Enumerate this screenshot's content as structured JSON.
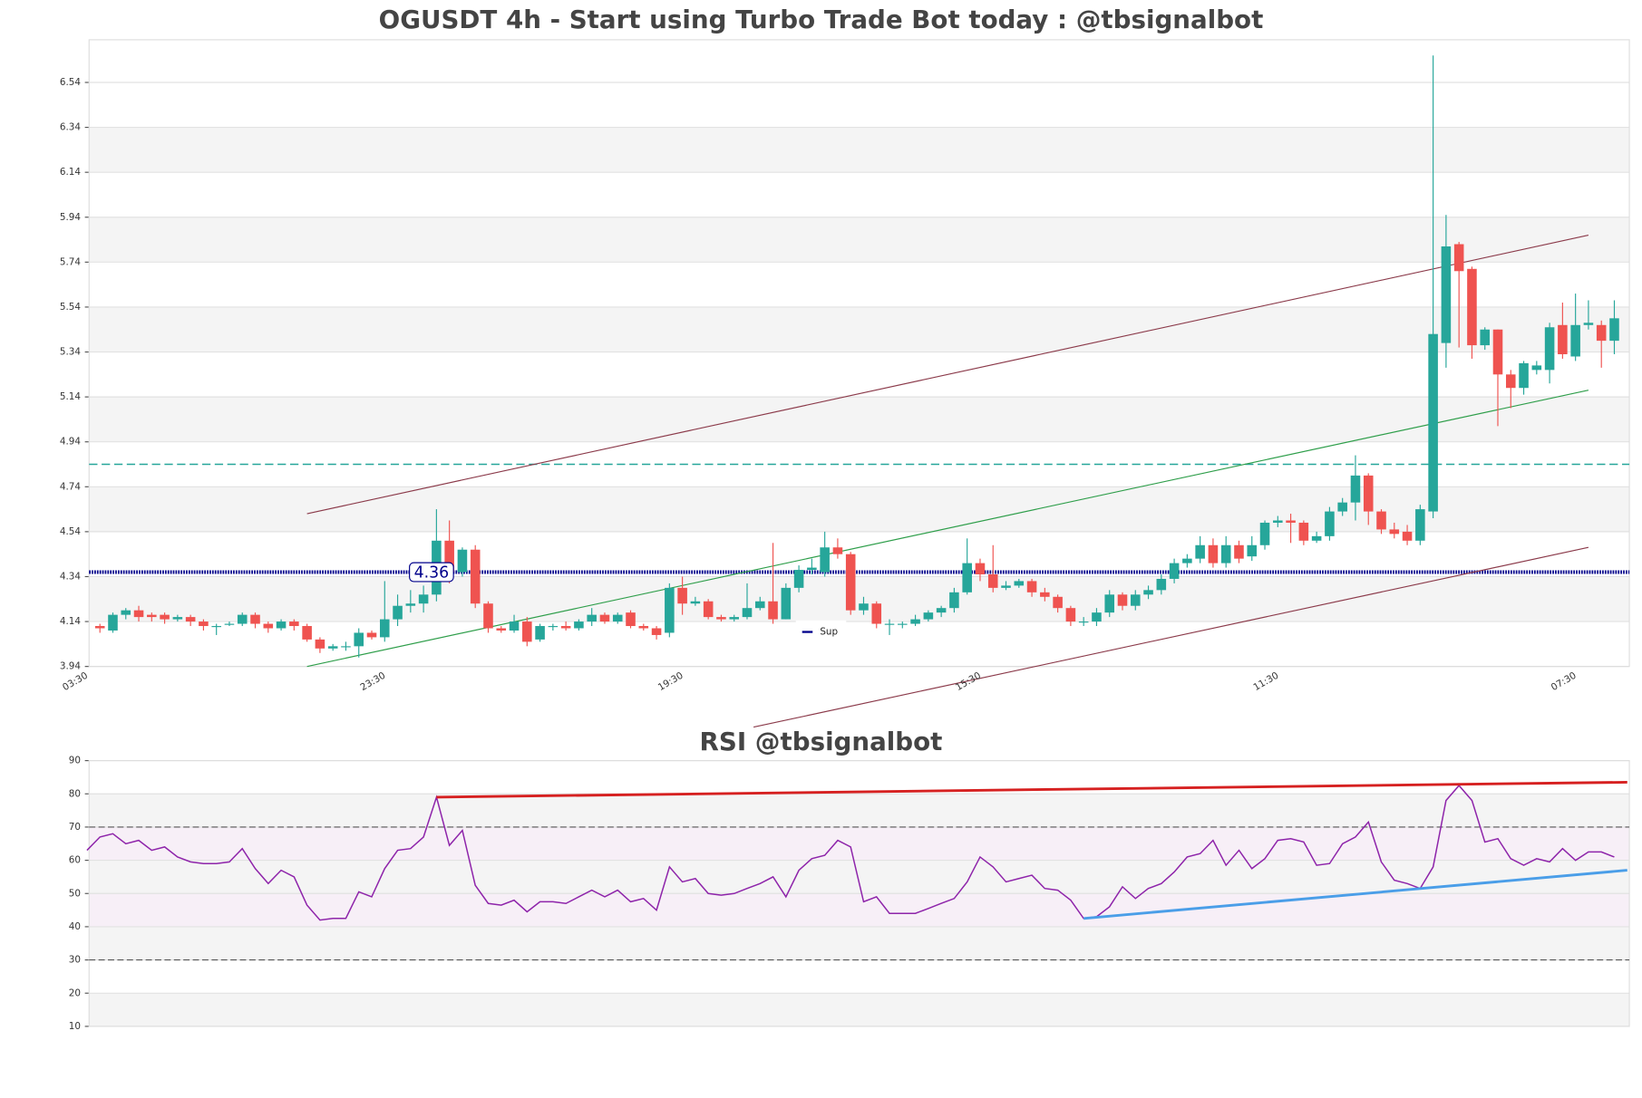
{
  "chart_data": [
    {
      "type": "candlestick",
      "title": "OGUSDT 4h - Start using Turbo Trade Bot today : @tbsignalbot",
      "categories": [
        "03:30",
        null,
        null,
        null,
        null,
        null,
        null,
        null,
        null,
        null,
        null,
        null,
        null,
        null,
        null,
        null,
        null,
        null,
        null,
        null,
        null,
        null,
        null,
        "23:30",
        null,
        null,
        null,
        null,
        null,
        null,
        null,
        null,
        null,
        null,
        null,
        null,
        null,
        null,
        null,
        null,
        null,
        null,
        null,
        null,
        null,
        null,
        "19:30",
        null,
        null,
        null,
        null,
        null,
        null,
        null,
        null,
        null,
        null,
        null,
        null,
        null,
        null,
        null,
        null,
        null,
        null,
        null,
        null,
        null,
        null,
        "15:30",
        null,
        null,
        null,
        null,
        null,
        null,
        null,
        null,
        null,
        null,
        null,
        null,
        null,
        null,
        null,
        null,
        null,
        null,
        null,
        null,
        null,
        null,
        "11:30",
        null,
        null,
        null,
        null,
        null,
        null,
        null,
        null,
        null,
        null,
        null,
        null,
        null,
        null,
        null,
        null,
        null,
        null,
        null,
        null,
        null,
        null,
        "07:30",
        null,
        null,
        null
      ],
      "open": [
        null,
        4.12,
        4.1,
        4.17,
        4.19,
        4.17,
        4.17,
        4.15,
        4.16,
        4.14,
        4.12,
        4.13,
        4.13,
        4.17,
        4.13,
        4.11,
        4.14,
        4.12,
        4.06,
        4.02,
        4.03,
        4.03,
        4.09,
        4.07,
        4.15,
        4.21,
        4.22,
        4.26,
        4.5,
        4.36,
        4.46,
        4.22,
        4.11,
        4.1,
        4.14,
        4.06,
        4.12,
        4.12,
        4.11,
        4.14,
        4.17,
        4.14,
        4.18,
        4.12,
        4.11,
        4.09,
        4.29,
        4.22,
        4.23,
        4.16,
        4.15,
        4.16,
        4.2,
        4.23,
        4.15,
        4.29,
        4.37,
        4.36,
        4.47,
        4.44,
        4.19,
        4.22,
        4.13,
        4.13,
        4.13,
        4.15,
        4.18,
        4.2,
        4.27,
        4.4,
        4.35,
        4.29,
        4.3,
        4.32,
        4.27,
        4.25,
        4.2,
        4.14,
        4.14,
        4.18,
        4.26,
        4.21,
        4.26,
        4.28,
        4.33,
        4.4,
        4.42,
        4.48,
        4.4,
        4.48,
        4.43,
        4.48,
        4.58,
        4.59,
        4.58,
        4.5,
        4.52,
        4.63,
        4.67,
        4.79,
        4.63,
        4.55,
        4.54,
        4.5,
        4.63,
        5.38,
        5.82,
        5.71,
        5.37,
        5.44,
        5.24,
        5.18,
        5.26,
        5.26,
        5.46,
        5.32,
        5.46,
        5.46,
        5.39
      ],
      "high": [
        null,
        4.13,
        4.18,
        4.2,
        4.21,
        4.18,
        4.18,
        4.17,
        4.17,
        4.15,
        4.13,
        4.14,
        4.18,
        4.18,
        4.14,
        4.15,
        4.15,
        4.13,
        4.07,
        4.04,
        4.05,
        4.11,
        4.1,
        4.32,
        4.26,
        4.28,
        4.3,
        4.64,
        4.59,
        4.47,
        4.48,
        4.23,
        4.12,
        4.17,
        4.16,
        4.13,
        4.13,
        4.14,
        4.15,
        4.2,
        4.18,
        4.18,
        4.19,
        4.13,
        4.12,
        4.31,
        4.34,
        4.25,
        4.24,
        4.17,
        4.17,
        4.31,
        4.25,
        4.49,
        4.31,
        4.39,
        4.42,
        4.54,
        4.51,
        4.45,
        4.25,
        4.23,
        4.15,
        4.14,
        4.17,
        4.19,
        4.21,
        4.29,
        4.51,
        4.42,
        4.48,
        4.32,
        4.33,
        4.33,
        4.29,
        4.26,
        4.21,
        4.16,
        4.2,
        4.28,
        4.27,
        4.28,
        4.3,
        4.35,
        4.42,
        4.44,
        4.52,
        4.51,
        4.52,
        4.5,
        4.52,
        4.59,
        4.61,
        4.62,
        4.59,
        4.54,
        4.65,
        4.69,
        4.88,
        4.8,
        4.64,
        4.58,
        4.57,
        4.66,
        6.66,
        5.95,
        5.83,
        5.72,
        5.45,
        5.44,
        5.26,
        5.3,
        5.3,
        5.47,
        5.56,
        5.6,
        5.57,
        5.48,
        5.57
      ],
      "low": [
        null,
        4.09,
        4.09,
        4.15,
        4.14,
        4.14,
        4.13,
        4.14,
        4.12,
        4.1,
        4.08,
        4.12,
        4.12,
        4.11,
        4.09,
        4.1,
        4.1,
        4.05,
        4.0,
        4.01,
        4.01,
        3.98,
        4.06,
        4.05,
        4.12,
        4.18,
        4.18,
        4.23,
        4.31,
        4.34,
        4.2,
        4.09,
        4.09,
        4.09,
        4.03,
        4.05,
        4.1,
        4.1,
        4.1,
        4.12,
        4.13,
        4.13,
        4.11,
        4.1,
        4.06,
        4.07,
        4.17,
        4.21,
        4.15,
        4.14,
        4.14,
        4.15,
        4.19,
        4.13,
        4.15,
        4.27,
        4.35,
        4.34,
        4.42,
        4.17,
        4.17,
        4.11,
        4.08,
        4.11,
        4.12,
        4.14,
        4.16,
        4.18,
        4.26,
        4.32,
        4.27,
        4.28,
        4.29,
        4.25,
        4.23,
        4.18,
        4.12,
        4.12,
        4.12,
        4.16,
        4.19,
        4.19,
        4.24,
        4.26,
        4.31,
        4.38,
        4.4,
        4.38,
        4.38,
        4.4,
        4.41,
        4.46,
        4.56,
        4.49,
        4.48,
        4.49,
        4.5,
        4.61,
        4.59,
        4.57,
        4.53,
        4.51,
        4.48,
        4.48,
        4.6,
        5.27,
        5.36,
        5.31,
        5.35,
        5.01,
        5.09,
        5.15,
        5.24,
        5.2,
        5.31,
        5.3,
        5.44,
        5.27,
        5.33
      ],
      "close": [
        null,
        4.11,
        4.17,
        4.19,
        4.16,
        4.16,
        4.15,
        4.16,
        4.14,
        4.12,
        4.12,
        4.13,
        4.17,
        4.13,
        4.11,
        4.14,
        4.12,
        4.06,
        4.02,
        4.03,
        4.03,
        4.09,
        4.07,
        4.15,
        4.21,
        4.22,
        4.26,
        4.5,
        4.36,
        4.46,
        4.22,
        4.11,
        4.1,
        4.14,
        4.05,
        4.12,
        4.12,
        4.11,
        4.14,
        4.17,
        4.14,
        4.17,
        4.12,
        4.11,
        4.08,
        4.29,
        4.22,
        4.23,
        4.16,
        4.15,
        4.16,
        4.2,
        4.23,
        4.15,
        4.29,
        4.37,
        4.38,
        4.47,
        4.44,
        4.19,
        4.22,
        4.13,
        4.13,
        4.13,
        4.15,
        4.18,
        4.2,
        4.27,
        4.4,
        4.35,
        4.29,
        4.3,
        4.32,
        4.27,
        4.25,
        4.2,
        4.14,
        4.14,
        4.18,
        4.26,
        4.21,
        4.26,
        4.28,
        4.33,
        4.4,
        4.42,
        4.48,
        4.4,
        4.48,
        4.42,
        4.48,
        4.58,
        4.59,
        4.58,
        4.5,
        4.52,
        4.63,
        4.67,
        4.79,
        4.63,
        4.55,
        4.53,
        4.5,
        4.64,
        5.42,
        5.81,
        5.7,
        5.37,
        5.44,
        5.24,
        5.18,
        5.29,
        5.28,
        5.45,
        5.33,
        5.46,
        5.47,
        5.39,
        5.49
      ],
      "up_color": "#26a69a",
      "down_color": "#ef5350",
      "ylim": [
        3.94,
        6.73
      ],
      "yticks": [
        3.94,
        4.14,
        4.34,
        4.54,
        4.74,
        4.94,
        5.14,
        5.34,
        5.54,
        5.74,
        5.94,
        6.14,
        6.34,
        6.54
      ],
      "grid": true,
      "resistance": {
        "value": 4.84,
        "color": "#26a69a"
      },
      "support": {
        "name": "Sup",
        "value": 4.36,
        "color": "#00008b"
      },
      "trendlines": [
        {
          "x": [
            17,
            116
          ],
          "y": [
            4.62,
            5.86
          ],
          "color": "#8b3a4a"
        },
        {
          "x": [
            17,
            116
          ],
          "y": [
            3.94,
            5.17
          ],
          "color": "#2e9e4a"
        },
        {
          "x": [
            51.5,
            116
          ],
          "y": [
            3.67,
            4.47
          ],
          "color": "#8b3a4a"
        }
      ]
    },
    {
      "type": "line",
      "title": "RSI @tbsignalbot",
      "values": [
        63,
        67,
        68,
        65,
        66,
        63,
        64,
        61,
        59.5,
        59,
        59,
        59.5,
        63.5,
        57.5,
        53,
        57,
        55,
        46.5,
        42,
        42.5,
        42.5,
        50.5,
        49,
        57.5,
        63,
        63.5,
        67,
        79,
        64.5,
        69,
        52.5,
        47,
        46.5,
        48,
        44.5,
        47.5,
        47.5,
        47,
        49,
        51,
        49,
        51,
        47.5,
        48.5,
        45,
        58,
        53.5,
        54.5,
        50,
        49.5,
        50,
        51.5,
        53,
        55,
        49,
        57,
        60.5,
        61.5,
        66,
        64,
        47.5,
        49,
        44,
        44,
        44,
        45.5,
        47,
        48.5,
        53.5,
        61,
        58,
        53.5,
        54.5,
        55.5,
        51.5,
        51,
        48,
        42.5,
        43,
        46,
        52,
        48.5,
        51.5,
        53,
        56.5,
        61,
        62,
        66,
        58.5,
        63,
        57.5,
        60.5,
        66,
        66.5,
        65.5,
        58.5,
        59,
        65,
        67,
        71.5,
        59.5,
        54,
        53,
        51.5,
        58,
        78,
        82.5,
        78,
        65.5,
        66.5,
        60.5,
        58.5,
        60.5,
        59.5,
        63.5,
        60,
        62.5,
        62.5,
        61
      ],
      "color": "#8e24aa",
      "ylim": [
        10,
        90
      ],
      "yticks": [
        10,
        20,
        30,
        40,
        50,
        60,
        70,
        80,
        90
      ],
      "levels": [
        70,
        30
      ],
      "grid": true,
      "trendlines": [
        {
          "x": [
            27,
            119
          ],
          "y": [
            79,
            83.5
          ],
          "color": "#d62020"
        },
        {
          "x": [
            77,
            119
          ],
          "y": [
            42.5,
            57
          ],
          "color": "#4a9ee8"
        }
      ]
    }
  ]
}
